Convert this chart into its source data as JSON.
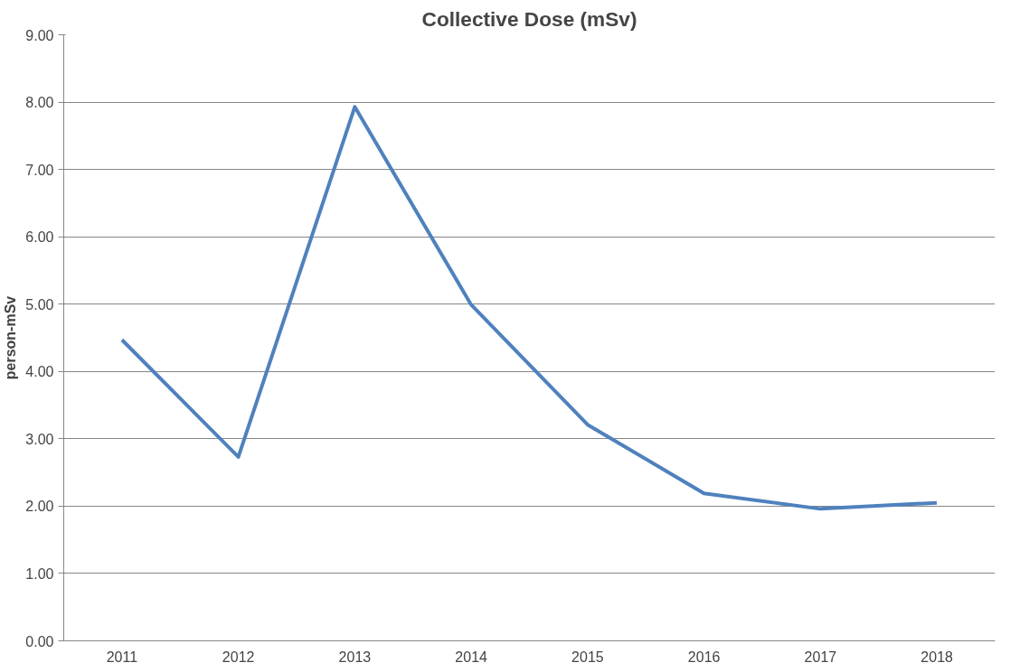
{
  "chart_data": {
    "type": "line",
    "title": "Collective Dose (mSv)",
    "ylabel": "person-mSv",
    "categories": [
      "2011",
      "2012",
      "2013",
      "2014",
      "2015",
      "2016",
      "2017",
      "2018"
    ],
    "series": [
      {
        "color": "#4f81bd",
        "values": [
          4.47,
          2.73,
          7.93,
          4.99,
          3.21,
          2.19,
          1.96,
          2.05
        ]
      }
    ],
    "ylim": [
      0,
      9
    ],
    "yticks": [
      {
        "value": 0,
        "label": "0.00"
      },
      {
        "value": 1,
        "label": "1.00"
      },
      {
        "value": 2,
        "label": "2.00"
      },
      {
        "value": 3,
        "label": "3.00"
      },
      {
        "value": 4,
        "label": "4.00"
      },
      {
        "value": 5,
        "label": "5.00"
      },
      {
        "value": 6,
        "label": "6.00"
      },
      {
        "value": 7,
        "label": "7.00"
      },
      {
        "value": 8,
        "label": "8.00"
      },
      {
        "value": 9,
        "label": "9.00"
      }
    ],
    "grid": "y"
  }
}
